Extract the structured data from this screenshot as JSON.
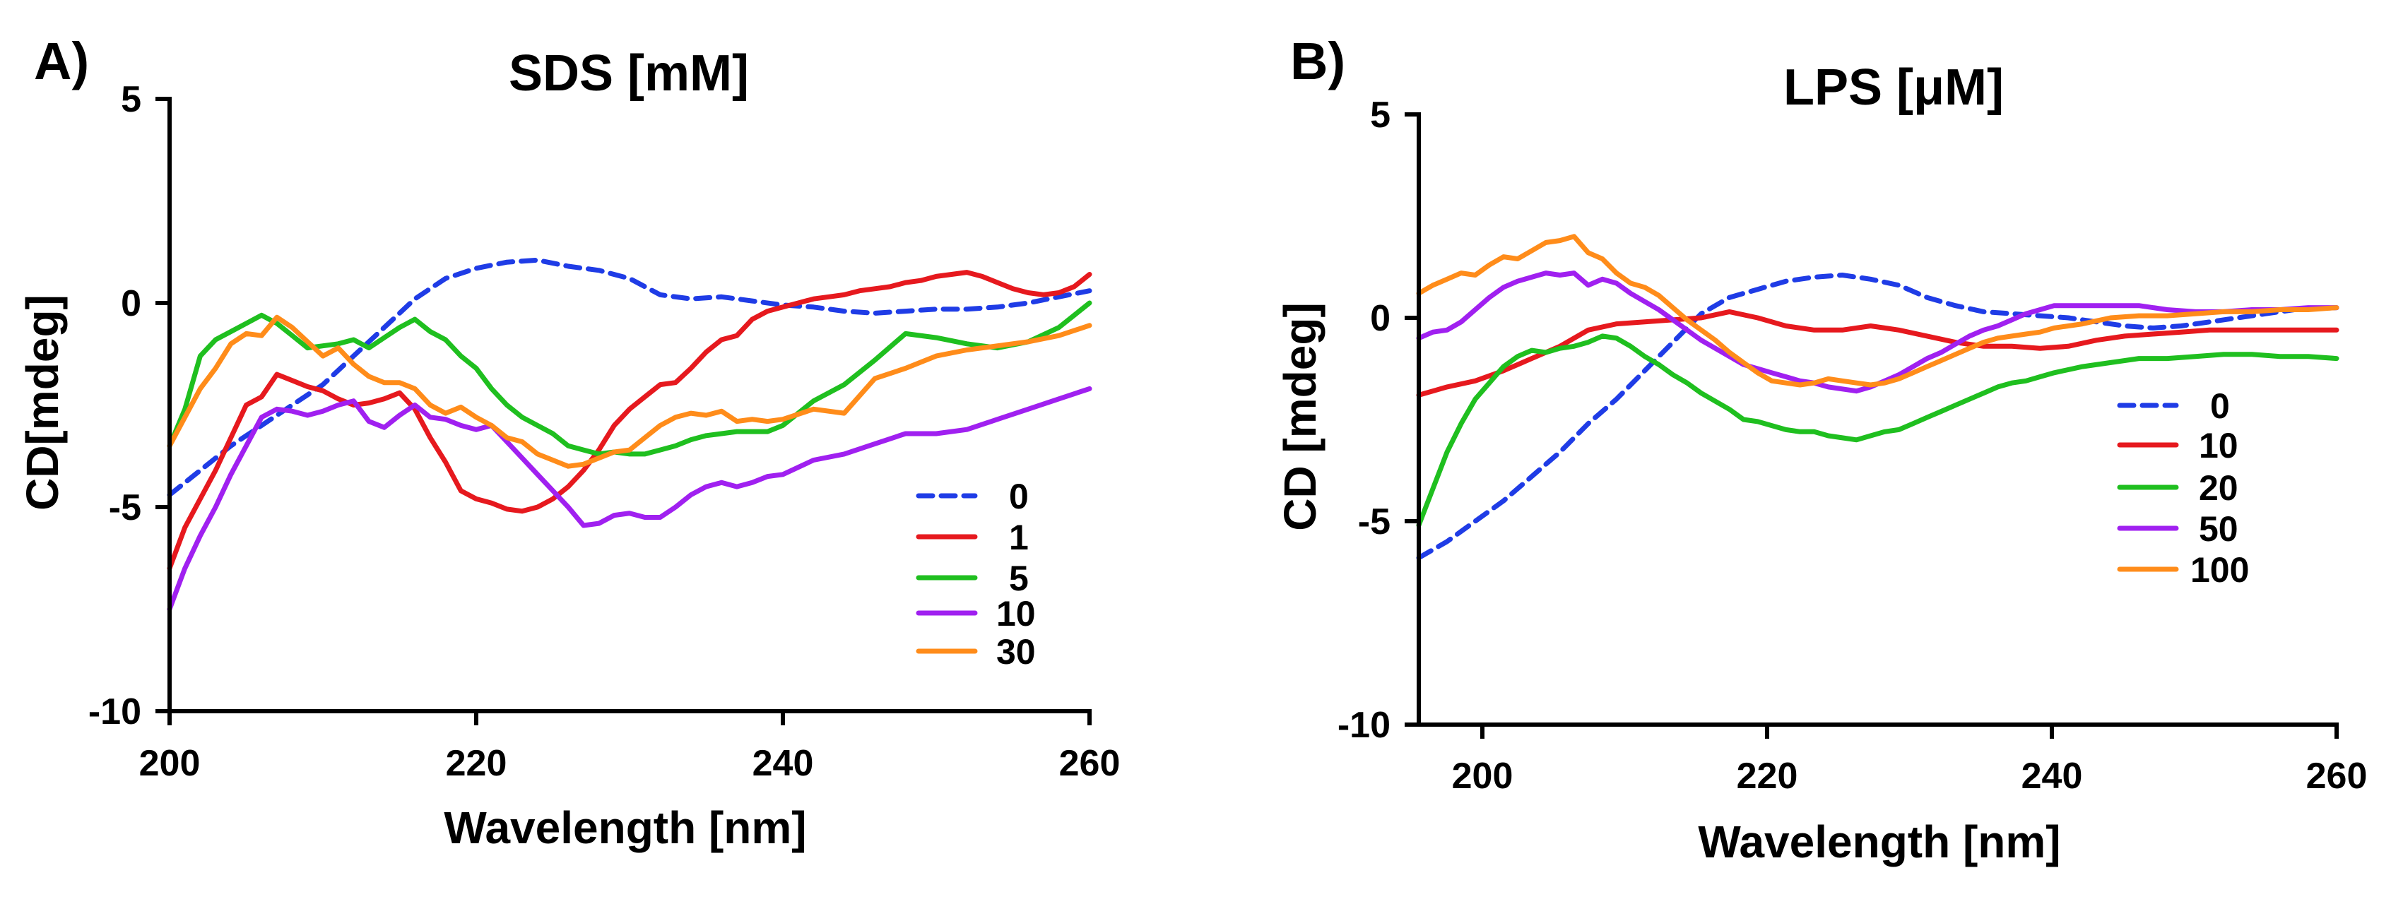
{
  "chart_data": [
    {
      "type": "line",
      "panel": "A)",
      "title": "SDS [mM]",
      "xlabel": "Wavelength [nm]",
      "ylabel": "CD[mdeg]",
      "xlim": [
        200,
        260
      ],
      "ylim": [
        -10,
        5
      ],
      "xticks": [
        200,
        220,
        240,
        260
      ],
      "yticks": [
        5,
        0,
        -5,
        -10
      ],
      "xtick_labels": [
        "200",
        "220",
        "240",
        "260"
      ],
      "ytick_labels": [
        "5",
        "0",
        "-5",
        "-10"
      ],
      "grid": false,
      "legend_position": "bottom-right",
      "series": [
        {
          "name": "0",
          "color": "#1f3ce6",
          "dash": true,
          "x": [
            200,
            202,
            204,
            206,
            208,
            210,
            212,
            214,
            216,
            218,
            220,
            222,
            224,
            226,
            228,
            230,
            232,
            234,
            236,
            238,
            240,
            242,
            244,
            246,
            248,
            250,
            252,
            254,
            256,
            258,
            260
          ],
          "y": [
            -4.7,
            -4.1,
            -3.5,
            -3.0,
            -2.5,
            -2.0,
            -1.3,
            -0.6,
            0.1,
            0.6,
            0.85,
            1.0,
            1.05,
            0.9,
            0.8,
            0.6,
            0.2,
            0.1,
            0.15,
            0.05,
            -0.05,
            -0.1,
            -0.2,
            -0.25,
            -0.2,
            -0.15,
            -0.15,
            -0.1,
            0.0,
            0.15,
            0.3
          ]
        },
        {
          "name": "1",
          "color": "#e6191e",
          "dash": false,
          "x": [
            200,
            201,
            202,
            203,
            204,
            205,
            206,
            207,
            208,
            209,
            210,
            211,
            212,
            213,
            214,
            215,
            216,
            217,
            218,
            219,
            220,
            221,
            222,
            223,
            224,
            225,
            226,
            227,
            228,
            229,
            230,
            231,
            232,
            233,
            234,
            235,
            236,
            237,
            238,
            239,
            240,
            241,
            242,
            243,
            244,
            245,
            246,
            247,
            248,
            249,
            250,
            251,
            252,
            253,
            254,
            255,
            256,
            257,
            258,
            259,
            260
          ],
          "y": [
            -6.5,
            -5.5,
            -4.8,
            -4.1,
            -3.3,
            -2.5,
            -2.3,
            -1.75,
            -1.9,
            -2.05,
            -2.15,
            -2.35,
            -2.5,
            -2.45,
            -2.35,
            -2.2,
            -2.6,
            -3.3,
            -3.9,
            -4.6,
            -4.8,
            -4.9,
            -5.05,
            -5.1,
            -5.0,
            -4.8,
            -4.5,
            -4.1,
            -3.6,
            -3.0,
            -2.6,
            -2.3,
            -2.0,
            -1.95,
            -1.6,
            -1.2,
            -0.9,
            -0.8,
            -0.4,
            -0.2,
            -0.1,
            0.0,
            0.1,
            0.15,
            0.2,
            0.3,
            0.35,
            0.4,
            0.5,
            0.55,
            0.65,
            0.7,
            0.75,
            0.65,
            0.5,
            0.35,
            0.25,
            0.2,
            0.25,
            0.4,
            0.7
          ]
        },
        {
          "name": "5",
          "color": "#1fbf1f",
          "dash": false,
          "x": [
            200,
            201,
            202,
            203,
            204,
            205,
            206,
            207,
            208,
            209,
            210,
            211,
            212,
            213,
            214,
            215,
            216,
            217,
            218,
            219,
            220,
            221,
            222,
            223,
            224,
            225,
            226,
            227,
            228,
            229,
            230,
            231,
            232,
            233,
            234,
            235,
            236,
            237,
            238,
            239,
            240,
            242,
            244,
            246,
            248,
            250,
            252,
            254,
            256,
            258,
            260
          ],
          "y": [
            -3.5,
            -2.6,
            -1.3,
            -0.9,
            -0.7,
            -0.5,
            -0.3,
            -0.5,
            -0.8,
            -1.1,
            -1.05,
            -1.0,
            -0.9,
            -1.1,
            -0.85,
            -0.6,
            -0.4,
            -0.7,
            -0.9,
            -1.3,
            -1.6,
            -2.1,
            -2.5,
            -2.8,
            -3.0,
            -3.2,
            -3.5,
            -3.6,
            -3.7,
            -3.65,
            -3.7,
            -3.7,
            -3.6,
            -3.5,
            -3.35,
            -3.25,
            -3.2,
            -3.15,
            -3.15,
            -3.15,
            -3.0,
            -2.4,
            -2.0,
            -1.4,
            -0.75,
            -0.85,
            -1.0,
            -1.1,
            -0.95,
            -0.6,
            0.0
          ]
        },
        {
          "name": "10",
          "color": "#a020f0",
          "dash": false,
          "x": [
            200,
            201,
            202,
            203,
            204,
            205,
            206,
            207,
            208,
            209,
            210,
            211,
            212,
            213,
            214,
            215,
            216,
            217,
            218,
            219,
            220,
            221,
            222,
            223,
            224,
            225,
            226,
            227,
            228,
            229,
            230,
            231,
            232,
            233,
            234,
            235,
            236,
            237,
            238,
            239,
            240,
            242,
            244,
            246,
            248,
            250,
            252,
            254,
            256,
            258,
            260
          ],
          "y": [
            -7.5,
            -6.5,
            -5.7,
            -5.0,
            -4.2,
            -3.5,
            -2.8,
            -2.6,
            -2.65,
            -2.75,
            -2.65,
            -2.5,
            -2.4,
            -2.9,
            -3.05,
            -2.75,
            -2.5,
            -2.8,
            -2.85,
            -3.0,
            -3.1,
            -3.0,
            -3.4,
            -3.8,
            -4.2,
            -4.6,
            -5.0,
            -5.45,
            -5.4,
            -5.2,
            -5.15,
            -5.25,
            -5.25,
            -5.0,
            -4.7,
            -4.5,
            -4.4,
            -4.5,
            -4.4,
            -4.25,
            -4.2,
            -3.85,
            -3.7,
            -3.45,
            -3.2,
            -3.2,
            -3.1,
            -2.85,
            -2.6,
            -2.35,
            -2.1
          ]
        },
        {
          "name": "30",
          "color": "#ff8c1a",
          "dash": false,
          "x": [
            200,
            201,
            202,
            203,
            204,
            205,
            206,
            207,
            208,
            209,
            210,
            211,
            212,
            213,
            214,
            215,
            216,
            217,
            218,
            219,
            220,
            221,
            222,
            223,
            224,
            225,
            226,
            227,
            228,
            229,
            230,
            231,
            232,
            233,
            234,
            235,
            236,
            237,
            238,
            239,
            240,
            242,
            244,
            246,
            248,
            250,
            252,
            254,
            256,
            258,
            260
          ],
          "y": [
            -3.5,
            -2.8,
            -2.1,
            -1.6,
            -1.0,
            -0.75,
            -0.8,
            -0.35,
            -0.6,
            -0.95,
            -1.3,
            -1.1,
            -1.5,
            -1.8,
            -1.95,
            -1.95,
            -2.1,
            -2.5,
            -2.7,
            -2.55,
            -2.8,
            -3.0,
            -3.3,
            -3.4,
            -3.7,
            -3.85,
            -4.0,
            -3.95,
            -3.8,
            -3.65,
            -3.6,
            -3.3,
            -3.0,
            -2.8,
            -2.7,
            -2.75,
            -2.65,
            -2.9,
            -2.85,
            -2.9,
            -2.85,
            -2.6,
            -2.7,
            -1.85,
            -1.6,
            -1.3,
            -1.15,
            -1.05,
            -0.95,
            -0.8,
            -0.55
          ]
        }
      ]
    },
    {
      "type": "line",
      "panel": "B)",
      "title": "LPS [μM]",
      "xlabel": "Wavelength [nm]",
      "ylabel": "CD [mdeg]",
      "xlim": [
        195,
        260
      ],
      "ylim": [
        -10,
        5
      ],
      "xticks": [
        200,
        220,
        240,
        260
      ],
      "yticks": [
        5,
        0,
        -5,
        -10
      ],
      "xtick_labels": [
        "200",
        "220",
        "240",
        "260"
      ],
      "ytick_labels": [
        "5",
        "0",
        "-5",
        "-10"
      ],
      "grid": false,
      "legend_position": "right",
      "series": [
        {
          "name": "0",
          "color": "#1f3ce6",
          "dash": true,
          "x": [
            195,
            197,
            199,
            201,
            203,
            205,
            207,
            209,
            211,
            213,
            215,
            217,
            219,
            221,
            223,
            225,
            227,
            229,
            231,
            233,
            235,
            237,
            239,
            241,
            243,
            245,
            247,
            249,
            251,
            253,
            255,
            257,
            260
          ],
          "y": [
            -5.9,
            -5.5,
            -5.0,
            -4.5,
            -3.9,
            -3.3,
            -2.6,
            -2.0,
            -1.3,
            -0.6,
            0.1,
            0.5,
            0.7,
            0.9,
            1.0,
            1.05,
            0.95,
            0.8,
            0.5,
            0.3,
            0.15,
            0.1,
            0.05,
            0.0,
            -0.1,
            -0.2,
            -0.25,
            -0.2,
            -0.1,
            0.0,
            0.1,
            0.2,
            0.25
          ]
        },
        {
          "name": "10",
          "color": "#e6191e",
          "dash": false,
          "x": [
            195,
            197,
            199,
            201,
            203,
            205,
            207,
            209,
            211,
            213,
            215,
            217,
            219,
            221,
            223,
            225,
            227,
            229,
            231,
            233,
            235,
            237,
            239,
            241,
            243,
            245,
            247,
            249,
            251,
            253,
            255,
            257,
            260
          ],
          "y": [
            -1.9,
            -1.7,
            -1.55,
            -1.3,
            -1.0,
            -0.7,
            -0.3,
            -0.15,
            -0.1,
            -0.05,
            0.0,
            0.15,
            0.0,
            -0.2,
            -0.3,
            -0.3,
            -0.2,
            -0.3,
            -0.45,
            -0.6,
            -0.7,
            -0.7,
            -0.75,
            -0.7,
            -0.55,
            -0.45,
            -0.4,
            -0.35,
            -0.3,
            -0.3,
            -0.3,
            -0.3,
            -0.3
          ]
        },
        {
          "name": "20",
          "color": "#1fbf1f",
          "dash": false,
          "x": [
            195,
            196,
            197,
            198,
            199,
            200,
            201,
            202,
            203,
            204,
            205,
            206,
            207,
            208,
            209,
            210,
            211,
            212,
            213,
            214,
            215,
            216,
            217,
            218,
            219,
            220,
            221,
            222,
            223,
            224,
            225,
            226,
            227,
            228,
            229,
            230,
            231,
            232,
            233,
            234,
            235,
            236,
            237,
            238,
            239,
            240,
            242,
            244,
            246,
            248,
            250,
            252,
            254,
            256,
            258,
            260
          ],
          "y": [
            -5.1,
            -4.2,
            -3.3,
            -2.6,
            -2.0,
            -1.6,
            -1.2,
            -0.95,
            -0.8,
            -0.85,
            -0.75,
            -0.7,
            -0.6,
            -0.45,
            -0.5,
            -0.7,
            -0.95,
            -1.15,
            -1.4,
            -1.6,
            -1.85,
            -2.05,
            -2.25,
            -2.5,
            -2.55,
            -2.65,
            -2.75,
            -2.8,
            -2.8,
            -2.9,
            -2.95,
            -3.0,
            -2.9,
            -2.8,
            -2.75,
            -2.6,
            -2.45,
            -2.3,
            -2.15,
            -2.0,
            -1.85,
            -1.7,
            -1.6,
            -1.55,
            -1.45,
            -1.35,
            -1.2,
            -1.1,
            -1.0,
            -1.0,
            -0.95,
            -0.9,
            -0.9,
            -0.95,
            -0.95,
            -1.0
          ]
        },
        {
          "name": "50",
          "color": "#a020f0",
          "dash": false,
          "x": [
            195,
            196,
            197,
            198,
            199,
            200,
            201,
            202,
            203,
            204,
            205,
            206,
            207,
            208,
            209,
            210,
            211,
            212,
            213,
            214,
            215,
            216,
            217,
            218,
            219,
            220,
            221,
            222,
            223,
            224,
            225,
            226,
            227,
            228,
            229,
            230,
            231,
            232,
            233,
            234,
            235,
            236,
            237,
            238,
            239,
            240,
            242,
            244,
            246,
            248,
            250,
            252,
            254,
            256,
            258,
            260
          ],
          "y": [
            -0.5,
            -0.35,
            -0.3,
            -0.1,
            0.2,
            0.5,
            0.75,
            0.9,
            1.0,
            1.1,
            1.05,
            1.1,
            0.8,
            0.95,
            0.85,
            0.6,
            0.4,
            0.2,
            -0.05,
            -0.3,
            -0.55,
            -0.75,
            -0.95,
            -1.15,
            -1.25,
            -1.35,
            -1.45,
            -1.55,
            -1.6,
            -1.7,
            -1.75,
            -1.8,
            -1.7,
            -1.55,
            -1.4,
            -1.2,
            -1.0,
            -0.85,
            -0.65,
            -0.45,
            -0.3,
            -0.2,
            -0.05,
            0.1,
            0.2,
            0.3,
            0.3,
            0.3,
            0.3,
            0.2,
            0.15,
            0.15,
            0.2,
            0.2,
            0.25,
            0.25
          ]
        },
        {
          "name": "100",
          "color": "#ff8c1a",
          "dash": false,
          "x": [
            195,
            196,
            197,
            198,
            199,
            200,
            201,
            202,
            203,
            204,
            205,
            206,
            207,
            208,
            209,
            210,
            211,
            212,
            213,
            214,
            215,
            216,
            217,
            218,
            219,
            220,
            221,
            222,
            223,
            224,
            225,
            226,
            227,
            228,
            229,
            230,
            231,
            232,
            233,
            234,
            235,
            236,
            237,
            238,
            239,
            240,
            242,
            244,
            246,
            248,
            250,
            252,
            254,
            256,
            258,
            260
          ],
          "y": [
            0.6,
            0.8,
            0.95,
            1.1,
            1.05,
            1.3,
            1.5,
            1.45,
            1.65,
            1.85,
            1.9,
            2.0,
            1.6,
            1.45,
            1.1,
            0.85,
            0.75,
            0.55,
            0.25,
            -0.05,
            -0.3,
            -0.55,
            -0.85,
            -1.1,
            -1.35,
            -1.55,
            -1.6,
            -1.65,
            -1.6,
            -1.5,
            -1.55,
            -1.6,
            -1.65,
            -1.6,
            -1.5,
            -1.35,
            -1.2,
            -1.05,
            -0.9,
            -0.75,
            -0.6,
            -0.5,
            -0.45,
            -0.4,
            -0.35,
            -0.25,
            -0.15,
            0.0,
            0.05,
            0.05,
            0.1,
            0.15,
            0.15,
            0.2,
            0.2,
            0.25
          ]
        }
      ]
    }
  ]
}
